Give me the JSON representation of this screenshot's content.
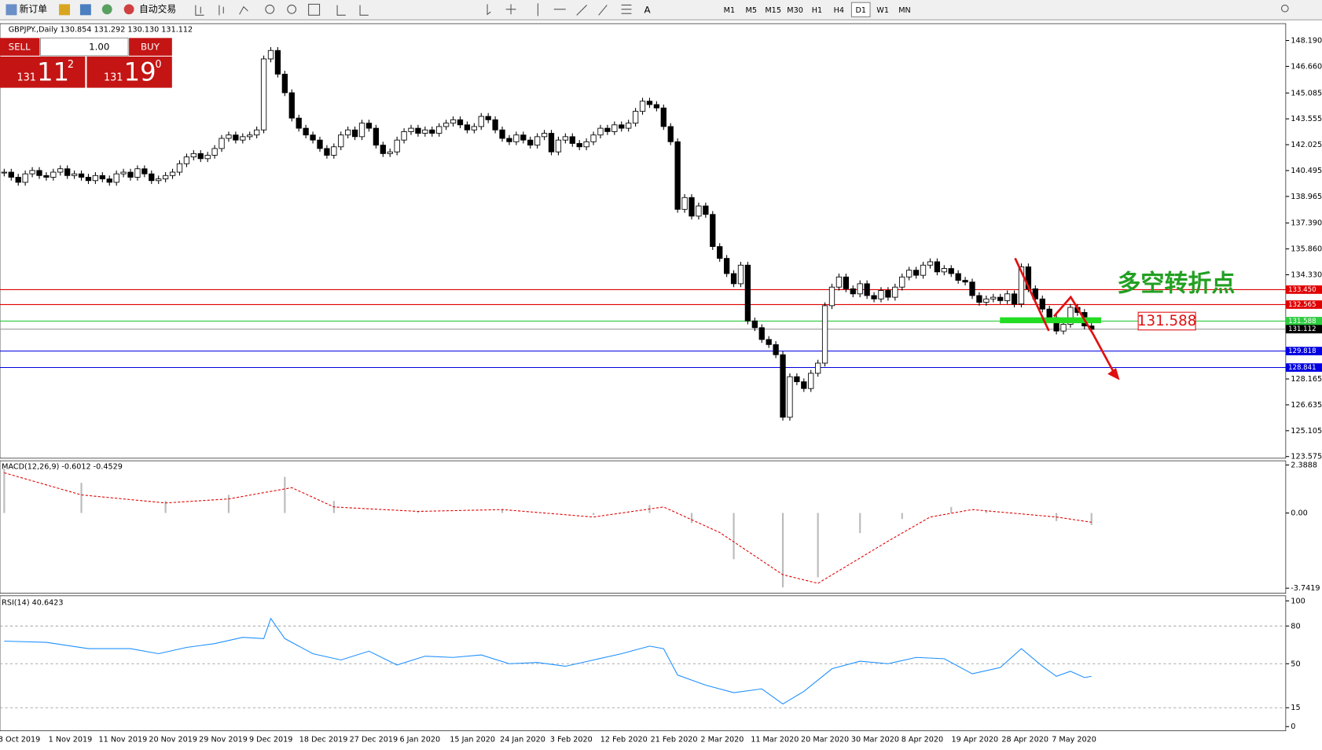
{
  "toolbar": {
    "new_order": "新订单",
    "auto_trading": "自动交易",
    "timeframes": [
      "M1",
      "M5",
      "M15",
      "M30",
      "H1",
      "H4",
      "D1",
      "W1",
      "MN"
    ],
    "active_timeframe": "D1"
  },
  "trade_panel": {
    "sell": "SELL",
    "buy": "BUY",
    "lot": "1.00",
    "sell_big": "131",
    "sell_digits": "11",
    "sell_sup": "2",
    "buy_big": "131",
    "buy_digits": "19",
    "buy_sup": "0"
  },
  "chart_data": {
    "type": "candlestick",
    "title": "GBPJPY.,Daily  130.854 131.292 130.130 131.112",
    "close": [
      140.4,
      140.1,
      139.8,
      140.3,
      140.5,
      140.2,
      140.1,
      140.4,
      140.6,
      140.2,
      140.3,
      140.1,
      139.9,
      140.2,
      140.0,
      139.8,
      140.3,
      140.4,
      140.1,
      140.6,
      140.3,
      139.9,
      140.0,
      140.2,
      140.4,
      140.9,
      141.3,
      141.5,
      141.2,
      141.4,
      141.8,
      142.4,
      142.6,
      142.3,
      142.5,
      142.6,
      142.9,
      147.1,
      147.6,
      146.2,
      145.1,
      143.6,
      143.0,
      142.6,
      142.3,
      141.8,
      141.4,
      141.9,
      142.6,
      142.9,
      142.5,
      143.3,
      143.0,
      142.0,
      141.5,
      141.6,
      142.3,
      142.8,
      143.0,
      142.7,
      142.9,
      142.7,
      143.1,
      143.3,
      143.5,
      143.2,
      142.9,
      143.1,
      143.7,
      143.5,
      142.9,
      142.4,
      142.2,
      142.6,
      142.3,
      142.0,
      142.5,
      142.7,
      141.6,
      142.3,
      142.5,
      142.1,
      141.9,
      142.2,
      142.6,
      143.0,
      142.8,
      143.2,
      143.0,
      143.3,
      144.0,
      144.6,
      144.4,
      144.2,
      143.1,
      142.2,
      138.2,
      138.9,
      137.8,
      138.4,
      137.9,
      136.0,
      135.3,
      134.4,
      133.8,
      134.9,
      131.6,
      131.2,
      130.5,
      130.2,
      129.6,
      125.9,
      128.3,
      128.0,
      127.6,
      128.5,
      129.1,
      132.5,
      133.6,
      134.2,
      133.5,
      133.2,
      133.8,
      133.1,
      132.9,
      133.4,
      133.0,
      133.6,
      134.2,
      134.6,
      134.3,
      134.9,
      135.1,
      134.5,
      134.7,
      134.4,
      134.0,
      133.9,
      133.1,
      132.7,
      132.9,
      133.0,
      132.8,
      133.2,
      132.6,
      134.8,
      133.5,
      132.9,
      132.3,
      131.8,
      131.0,
      131.4,
      132.4,
      132.1,
      131.3,
      131.1
    ],
    "ylim": [
      123.575,
      148.19
    ],
    "yticks": [
      {
        "value": 148.19,
        "label": "148.190"
      },
      {
        "value": 146.66,
        "label": "146.660"
      },
      {
        "value": 145.085,
        "label": "145.085"
      },
      {
        "value": 143.555,
        "label": "143.555"
      },
      {
        "value": 142.025,
        "label": "142.025"
      },
      {
        "value": 140.495,
        "label": "140.495"
      },
      {
        "value": 138.965,
        "label": "138.965"
      },
      {
        "value": 137.39,
        "label": "137.390"
      },
      {
        "value": 135.86,
        "label": "135.860"
      },
      {
        "value": 134.33,
        "label": "134.330"
      },
      {
        "value": 128.165,
        "label": "128.165"
      },
      {
        "value": 126.635,
        "label": "126.635"
      },
      {
        "value": 125.105,
        "label": "125.105"
      },
      {
        "value": 123.575,
        "label": "123.575"
      }
    ],
    "levels": [
      {
        "value": 133.45,
        "label": "133.450",
        "color": "#e00000"
      },
      {
        "value": 132.565,
        "label": "132.565",
        "color": "#e00000"
      },
      {
        "value": 131.588,
        "label": "131.588",
        "color": "#2ecc40"
      },
      {
        "value": 131.112,
        "label": "131.112",
        "color": "#000000"
      },
      {
        "value": 129.818,
        "label": "129.818",
        "color": "#0000e0"
      },
      {
        "value": 128.841,
        "label": "128.841",
        "color": "#0000e0"
      }
    ],
    "dates": [
      "3 Oct 2019",
      "1 Nov 2019",
      "11 Nov 2019",
      "20 Nov 2019",
      "29 Nov 2019",
      "9 Dec 2019",
      "18 Dec 2019",
      "27 Dec 2019",
      "6 Jan 2020",
      "15 Jan 2020",
      "24 Jan 2020",
      "3 Feb 2020",
      "12 Feb 2020",
      "21 Feb 2020",
      "2 Mar 2020",
      "11 Mar 2020",
      "20 Mar 2020",
      "30 Mar 2020",
      "8 Apr 2020",
      "19 Apr 2020",
      "28 Apr 2020",
      "7 May 2020"
    ],
    "annotation": "多空转折点",
    "annotation_price": "131.588",
    "macd": {
      "label": "MACD(12,26,9) -0.6012 -0.4529",
      "ylim": [
        -3.7419,
        2.3888
      ],
      "yticks": [
        2.3888,
        {
          "value": 0,
          "label": "0.00"
        },
        -3.7419
      ],
      "hist_x": [
        0,
        11,
        23,
        32,
        40,
        47,
        59,
        71,
        84,
        92,
        98,
        104,
        111,
        116,
        122,
        128,
        135,
        140,
        150,
        155
      ],
      "hist": [
        2.2,
        1.5,
        0.6,
        0.9,
        1.8,
        0.6,
        0.1,
        0.2,
        -0.1,
        0.4,
        -0.5,
        -2.3,
        -3.7,
        -3.2,
        -1.0,
        -0.3,
        0.3,
        0.1,
        -0.4,
        -0.6
      ],
      "signal_x": [
        0,
        11,
        23,
        32,
        41,
        47,
        59,
        71,
        84,
        94,
        102,
        111,
        116,
        126,
        132,
        138,
        150,
        155
      ],
      "signal": [
        2.0,
        0.9,
        0.5,
        0.7,
        1.26,
        0.3,
        0.08,
        0.17,
        -0.2,
        0.3,
        -0.97,
        -3.07,
        -3.5,
        -1.4,
        -0.2,
        0.17,
        -0.2,
        -0.46
      ]
    },
    "rsi": {
      "label": "RSI(14) 40.6423",
      "ylim": [
        0,
        100
      ],
      "yticks": [
        100,
        80,
        50,
        15,
        0
      ],
      "levels": [
        80,
        50,
        15
      ],
      "x": [
        0,
        6,
        12,
        18,
        22,
        26,
        30,
        34,
        37,
        38,
        40,
        44,
        48,
        52,
        56,
        60,
        64,
        68,
        72,
        76,
        80,
        84,
        88,
        92,
        94,
        96,
        100,
        104,
        108,
        111,
        114,
        118,
        122,
        126,
        130,
        134,
        138,
        142,
        145,
        148,
        150,
        152,
        154,
        155
      ],
      "values": [
        68,
        67,
        62,
        62,
        58,
        63,
        66,
        71,
        70,
        86,
        70,
        58,
        53,
        60,
        49,
        56,
        55,
        57,
        50,
        51,
        48,
        53,
        58,
        64,
        62,
        41,
        33,
        27,
        30,
        18,
        28,
        46,
        52,
        50,
        55,
        54,
        42,
        47,
        62,
        48,
        40,
        44,
        39,
        40
      ]
    }
  }
}
